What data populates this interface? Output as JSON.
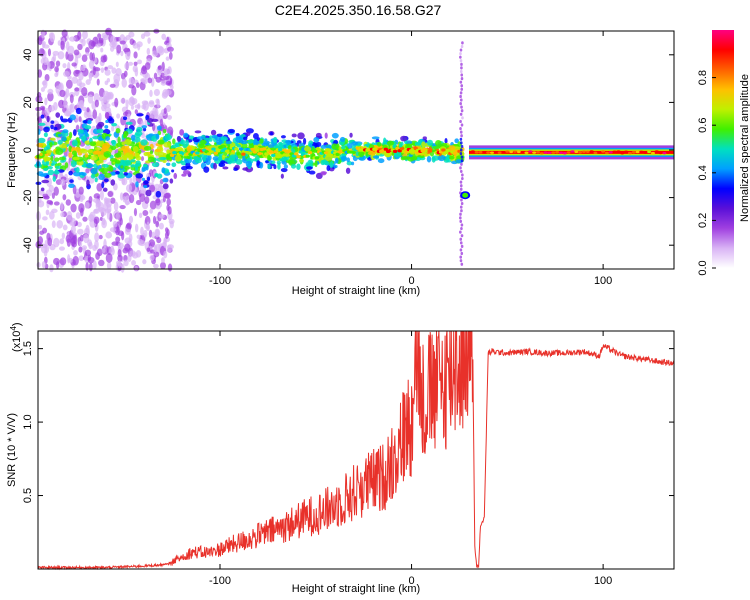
{
  "title": "C2E4.2025.350.16.58.G27",
  "colors": {
    "snr_line": "#e8312a",
    "frame": "#000000"
  },
  "chart_data": [
    {
      "type": "heatmap",
      "xlabel": "Height of straight line (km)",
      "ylabel": "Frequency (Hz)",
      "xlim": [
        -195,
        137
      ],
      "ylim": [
        -50,
        50
      ],
      "xticks": [
        -100,
        0,
        100
      ],
      "yticks": [
        -40,
        -20,
        0,
        20,
        40
      ],
      "ridge": [
        {
          "x": -125,
          "y": -1
        },
        {
          "x": -100,
          "y": 0
        },
        {
          "x": -75,
          "y": -1
        },
        {
          "x": -50,
          "y": -2
        },
        {
          "x": -25,
          "y": 0
        },
        {
          "x": 0,
          "y": 0
        },
        {
          "x": 25,
          "y": -1
        },
        {
          "x": 30,
          "y": -1
        },
        {
          "x": 60,
          "y": -1
        },
        {
          "x": 100,
          "y": -1
        },
        {
          "x": 137,
          "y": -1
        }
      ],
      "feature_points": [
        {
          "x": 28,
          "y": -19
        }
      ]
    },
    {
      "type": "colorbar",
      "label": "Normalized spectral amplitude",
      "range": [
        0.0,
        1.0
      ],
      "ticks": [
        "0.0",
        "0.2",
        "0.4",
        "0.6",
        "0.8"
      ],
      "colormap": [
        "#ffffff",
        "#d9b3f5",
        "#a040e0",
        "#5a10d8",
        "#0000ff",
        "#00a0ff",
        "#00e0c0",
        "#40f000",
        "#c0f000",
        "#ffc000",
        "#ff6000",
        "#ff0000",
        "#ff0080"
      ]
    },
    {
      "type": "line",
      "xlabel": "Height of straight line (km)",
      "ylabel": "SNR (10 * V/V)",
      "y_multiplier": "(x10",
      "y_multiplier_exp": "4",
      "y_multiplier_close": ")",
      "xlim": [
        -195,
        137
      ],
      "ylim": [
        0,
        1.62
      ],
      "xticks": [
        -100,
        0,
        100
      ],
      "yticks": [
        0.5,
        1.0,
        1.5
      ],
      "ytick_labels": [
        "0.5",
        "1.0",
        "1.5"
      ],
      "series": [
        {
          "name": "SNR",
          "x": [
            -195,
            -160,
            -140,
            -128,
            -122,
            -115,
            -105,
            -95,
            -85,
            -75,
            -65,
            -55,
            -45,
            -35,
            -25,
            -15,
            -8,
            0,
            2,
            5,
            10,
            15,
            20,
            25,
            30,
            32,
            33,
            34,
            35,
            36,
            37,
            38,
            40,
            42,
            50,
            60,
            70,
            80,
            90,
            98,
            100,
            110,
            120,
            130,
            137
          ],
          "values": [
            0.01,
            0.01,
            0.02,
            0.03,
            0.06,
            0.1,
            0.1,
            0.14,
            0.18,
            0.22,
            0.26,
            0.31,
            0.35,
            0.42,
            0.5,
            0.55,
            0.7,
            0.9,
            1.5,
            1.0,
            1.05,
            1.1,
            1.18,
            1.28,
            1.4,
            1.42,
            0.15,
            0.02,
            0.02,
            0.3,
            0.32,
            0.35,
            1.47,
            1.48,
            1.47,
            1.48,
            1.47,
            1.47,
            1.48,
            1.45,
            1.52,
            1.45,
            1.43,
            1.41,
            1.4
          ]
        }
      ]
    }
  ]
}
